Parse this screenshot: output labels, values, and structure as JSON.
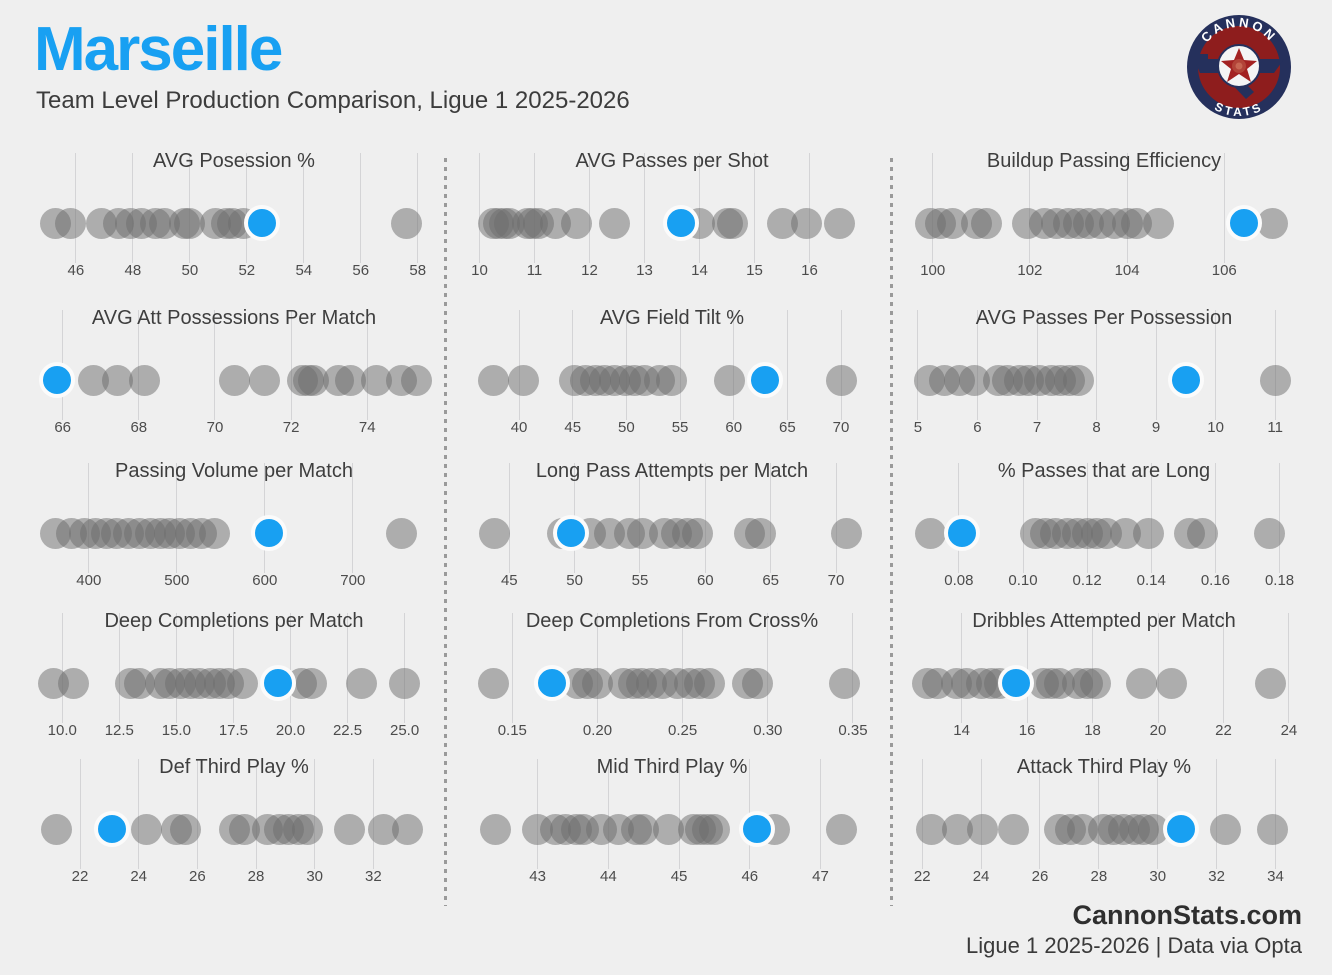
{
  "header": {
    "team": "Marseille",
    "subtitle": "Team Level Production Comparison, Ligue 1 2025-2026"
  },
  "logo": {
    "top_text": "CANNON",
    "bottom_text": "STATS"
  },
  "footer": {
    "site": "CannonStats.com",
    "line2": "Ligue 1 2025-2026 | Data via Opta"
  },
  "colors": {
    "accent": "#18a0f2",
    "dot_gray": "rgba(108,108,108,0.5)",
    "background": "#efefef",
    "gridline": "#d4d4d6",
    "logo_navy": "#25305c",
    "logo_red": "#8e1d1d"
  },
  "chart_data": [
    {
      "type": "strip",
      "title": "AVG Posession %",
      "domain": [
        44.6,
        58.5
      ],
      "ticks": [
        46,
        48,
        50,
        52,
        54,
        56,
        58
      ],
      "tick_labels": [
        "46",
        "48",
        "50",
        "52",
        "54",
        "56",
        "58"
      ],
      "team": "Marseille",
      "team_value": 52.55,
      "others": [
        45.3,
        45.8,
        46.9,
        47.5,
        47.9,
        48.3,
        48.8,
        49.1,
        49.8,
        50.0,
        50.9,
        51.3,
        51.5,
        51.9,
        57.6
      ]
    },
    {
      "type": "strip",
      "title": "AVG Passes per Shot",
      "domain": [
        9.9,
        17.1
      ],
      "ticks": [
        10,
        11,
        12,
        13,
        14,
        15,
        16
      ],
      "tick_labels": [
        "10",
        "11",
        "12",
        "13",
        "14",
        "15",
        "16"
      ],
      "team": "Marseille",
      "team_value": 13.67,
      "others": [
        10.25,
        10.35,
        10.45,
        10.55,
        10.87,
        10.96,
        11.07,
        11.38,
        11.77,
        12.46,
        14.0,
        14.5,
        14.6,
        15.5,
        15.95,
        16.55
      ]
    },
    {
      "type": "strip",
      "title": "Buildup Passing Efficiency",
      "domain": [
        99.45,
        107.6
      ],
      "ticks": [
        100,
        102,
        104,
        106
      ],
      "tick_labels": [
        "100",
        "102",
        "104",
        "106"
      ],
      "team": "Marseille",
      "team_value": 106.4,
      "others": [
        99.95,
        100.15,
        100.4,
        100.9,
        101.1,
        101.95,
        102.3,
        102.55,
        102.8,
        103.0,
        103.2,
        103.45,
        103.75,
        104.0,
        104.2,
        104.65,
        107.0
      ]
    },
    {
      "type": "strip",
      "title": "AVG Att Possessions Per Match",
      "domain": [
        65.3,
        75.7
      ],
      "ticks": [
        66,
        68,
        70,
        72,
        74
      ],
      "tick_labels": [
        "66",
        "68",
        "70",
        "72",
        "74"
      ],
      "team": "Marseille",
      "team_value": 65.85,
      "others": [
        66.8,
        67.45,
        68.15,
        70.5,
        71.3,
        72.3,
        72.45,
        72.6,
        73.25,
        73.55,
        74.25,
        74.9,
        75.3
      ]
    },
    {
      "type": "strip",
      "title": "AVG Field Tilt %",
      "domain": [
        35.8,
        72.7
      ],
      "ticks": [
        40,
        45,
        50,
        55,
        60,
        65,
        70
      ],
      "tick_labels": [
        "40",
        "45",
        "50",
        "55",
        "60",
        "65",
        "70"
      ],
      "team": "Marseille",
      "team_value": 62.9,
      "others": [
        37.6,
        40.4,
        45.2,
        46.2,
        47.1,
        48.0,
        48.9,
        49.9,
        50.8,
        51.7,
        53.1,
        54.2,
        59.6,
        70.0
      ]
    },
    {
      "type": "strip",
      "title": "AVG Passes Per Possession",
      "domain": [
        4.8,
        11.45
      ],
      "ticks": [
        5,
        6,
        7,
        8,
        9,
        10,
        11
      ],
      "tick_labels": [
        "5",
        "6",
        "7",
        "8",
        "9",
        "10",
        "11"
      ],
      "team": "Marseille",
      "team_value": 9.5,
      "others": [
        5.2,
        5.45,
        5.7,
        5.95,
        6.35,
        6.5,
        6.7,
        6.85,
        7.05,
        7.25,
        7.4,
        7.55,
        7.7,
        11.0
      ]
    },
    {
      "type": "strip",
      "title": "Passing Volume per Match",
      "domain": [
        340,
        790
      ],
      "ticks": [
        400,
        500,
        600,
        700
      ],
      "tick_labels": [
        "400",
        "500",
        "600",
        "700"
      ],
      "team": "Marseille",
      "team_value": 605,
      "others": [
        362,
        380,
        395,
        408,
        420,
        432,
        445,
        458,
        470,
        482,
        492,
        503,
        515,
        528,
        543,
        755
      ]
    },
    {
      "type": "strip",
      "title": "Long Pass Attempts per Match",
      "domain": [
        42.3,
        72.6
      ],
      "ticks": [
        45,
        50,
        55,
        60,
        65,
        70
      ],
      "tick_labels": [
        "45",
        "50",
        "55",
        "60",
        "65",
        "70"
      ],
      "team": "Marseille",
      "team_value": 49.7,
      "others": [
        43.9,
        49.1,
        51.2,
        52.7,
        54.2,
        55.2,
        56.9,
        57.8,
        58.6,
        59.4,
        63.4,
        64.2,
        70.8
      ]
    },
    {
      "type": "strip",
      "title": "% Passes that are Long",
      "domain": [
        0.0635,
        0.187
      ],
      "ticks": [
        0.08,
        0.1,
        0.12,
        0.14,
        0.16,
        0.18
      ],
      "tick_labels": [
        "0.08",
        "0.10",
        "0.12",
        "0.14",
        "0.16",
        "0.18"
      ],
      "team": "Marseille",
      "team_value": 0.081,
      "others": [
        0.071,
        0.104,
        0.107,
        0.11,
        0.114,
        0.117,
        0.12,
        0.123,
        0.126,
        0.132,
        0.139,
        0.152,
        0.156,
        0.177
      ]
    },
    {
      "type": "strip",
      "title": "Deep Completions per Match",
      "domain": [
        8.85,
        26.2
      ],
      "ticks": [
        10.0,
        12.5,
        15.0,
        17.5,
        20.0,
        22.5,
        25.0
      ],
      "tick_labels": [
        "10.0",
        "12.5",
        "15.0",
        "17.5",
        "20.0",
        "22.5",
        "25.0"
      ],
      "team": "Marseille",
      "team_value": 19.45,
      "others": [
        9.6,
        10.5,
        13.0,
        13.4,
        14.3,
        14.7,
        15.2,
        15.6,
        16.0,
        16.5,
        16.9,
        17.3,
        17.9,
        20.5,
        20.9,
        23.1,
        25.0
      ]
    },
    {
      "type": "strip",
      "title": "Deep Completions From Cross%",
      "domain": [
        0.1275,
        0.36
      ],
      "ticks": [
        0.15,
        0.2,
        0.25,
        0.3,
        0.35
      ],
      "tick_labels": [
        "0.15",
        "0.20",
        "0.25",
        "0.30",
        "0.35"
      ],
      "team": "Marseille",
      "team_value": 0.1735,
      "others": [
        0.139,
        0.188,
        0.194,
        0.2,
        0.215,
        0.221,
        0.226,
        0.232,
        0.238,
        0.247,
        0.254,
        0.26,
        0.266,
        0.288,
        0.294,
        0.345
      ]
    },
    {
      "type": "strip",
      "title": "Dribbles Attempted per Match",
      "domain": [
        12.3,
        24.4
      ],
      "ticks": [
        14,
        16,
        18,
        20,
        22,
        24
      ],
      "tick_labels": [
        "14",
        "16",
        "18",
        "20",
        "22",
        "24"
      ],
      "team": "Marseille",
      "team_value": 15.65,
      "others": [
        12.95,
        13.25,
        13.85,
        14.15,
        14.6,
        14.9,
        15.15,
        16.5,
        16.75,
        17.0,
        17.55,
        17.85,
        18.1,
        19.5,
        20.4,
        23.45
      ]
    },
    {
      "type": "strip",
      "title": "Def Third Play %",
      "domain": [
        20.5,
        34.0
      ],
      "ticks": [
        22,
        24,
        26,
        28,
        30,
        32
      ],
      "tick_labels": [
        "22",
        "24",
        "26",
        "28",
        "30",
        "32"
      ],
      "team": "Marseille",
      "team_value": 23.1,
      "others": [
        21.2,
        24.25,
        25.3,
        25.6,
        27.25,
        27.6,
        28.4,
        28.8,
        29.1,
        29.45,
        29.75,
        31.2,
        32.35,
        33.15
      ]
    },
    {
      "type": "strip",
      "title": "Mid Third Play %",
      "domain": [
        42.1,
        47.7
      ],
      "ticks": [
        43,
        44,
        45,
        46,
        47
      ],
      "tick_labels": [
        "43",
        "44",
        "45",
        "46",
        "47"
      ],
      "team": "Marseille",
      "team_value": 46.1,
      "others": [
        42.4,
        43.0,
        43.25,
        43.4,
        43.55,
        43.65,
        43.9,
        44.15,
        44.4,
        44.5,
        44.85,
        45.2,
        45.3,
        45.4,
        45.5,
        46.35,
        47.3
      ]
    },
    {
      "type": "strip",
      "title": "Attack Third Play %",
      "domain": [
        21.45,
        34.9
      ],
      "ticks": [
        22,
        24,
        26,
        28,
        30,
        32,
        34
      ],
      "tick_labels": [
        "22",
        "24",
        "26",
        "28",
        "30",
        "32",
        "34"
      ],
      "team": "Marseille",
      "team_value": 30.8,
      "others": [
        22.3,
        23.2,
        24.05,
        25.1,
        26.65,
        27.05,
        27.45,
        28.15,
        28.5,
        28.85,
        29.2,
        29.5,
        29.85,
        32.3,
        33.9
      ]
    }
  ]
}
